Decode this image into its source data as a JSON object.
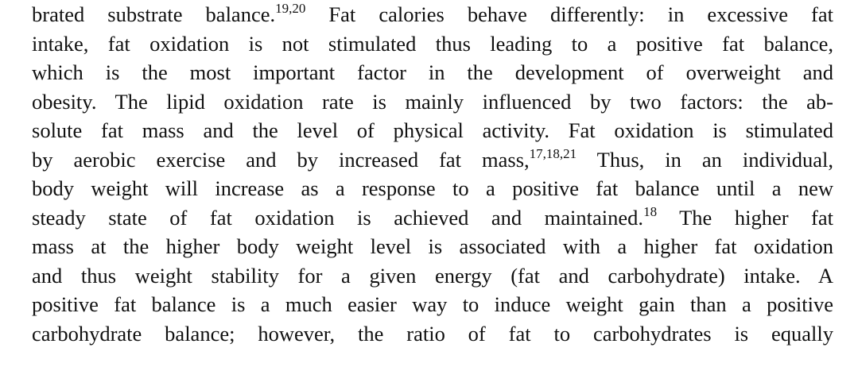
{
  "paragraph": {
    "lines": [
      [
        {
          "text": "brated substrate balance."
        },
        {
          "superscript": "19,20"
        },
        {
          "text": " Fat calories behave differently: in excessive fat"
        }
      ],
      [
        {
          "text": "intake, fat oxidation is not stimulated thus leading to a positive fat balance,"
        }
      ],
      [
        {
          "text": "which is the most important factor in the development of overweight and"
        }
      ],
      [
        {
          "text": "obesity. The lipid oxidation rate is mainly influenced by two factors: the ab-"
        }
      ],
      [
        {
          "text": "solute fat mass and the level of physical activity. Fat oxidation is stimulated"
        }
      ],
      [
        {
          "text": "by aerobic exercise and by increased fat mass,"
        },
        {
          "superscript": "17,18,21"
        },
        {
          "text": " Thus, in an individual,"
        }
      ],
      [
        {
          "text": "body weight will increase as a response to a positive fat balance until a new"
        }
      ],
      [
        {
          "text": "steady state of fat oxidation is achieved and maintained."
        },
        {
          "superscript": "18"
        },
        {
          "text": " The higher fat"
        }
      ],
      [
        {
          "text": "mass at the higher body weight level is associated with a higher fat oxidation"
        }
      ],
      [
        {
          "text": "and thus weight stability for a given energy (fat and carbohydrate) intake. A"
        }
      ],
      [
        {
          "text": "positive fat balance is a much easier way to induce weight gain than a positive"
        }
      ],
      [
        {
          "text": "carbohydrate balance; however, the ratio of fat to carbohydrates is equally"
        }
      ]
    ]
  }
}
